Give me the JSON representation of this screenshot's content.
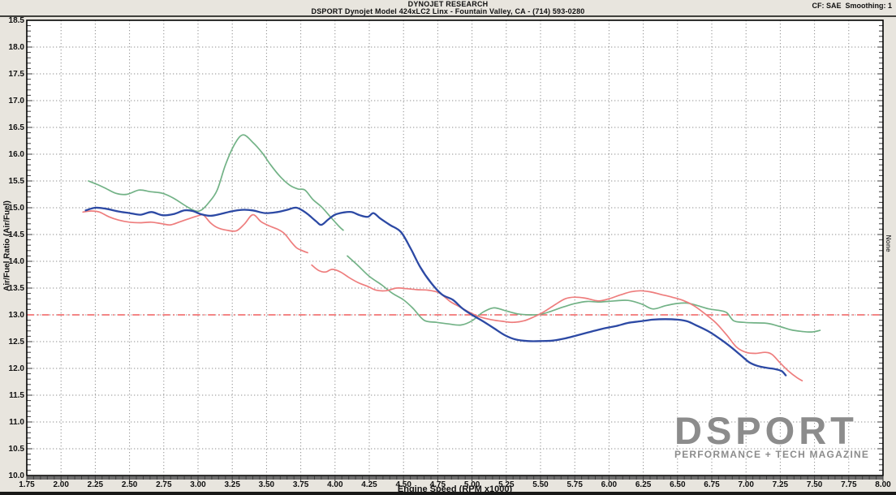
{
  "header": {
    "right_info": "CF: SAE  Smoothing: 1"
  },
  "right_label": "None",
  "watermark": {
    "name": "DSPORT",
    "tagline": "PERFORMANCE + TECH MAGAZINE"
  },
  "chart_data": {
    "type": "line",
    "title": "DYNOJET RESEARCH",
    "subtitle": "DSPORT Dynojet Model 424xLC2 Linx - Fountain Valley, CA - (714) 593-0280",
    "xlabel": "Engine Speed (RPM x1000)",
    "ylabel": "Air/Fuel Ratio (Air/Fuel)",
    "xlim": [
      1.75,
      8.0
    ],
    "ylim": [
      10.0,
      18.5
    ],
    "x_tick_step": 0.25,
    "y_tick_step": 0.5,
    "x_minor_step": 0.05,
    "y_minor_step": 0.1,
    "grid": "dotted",
    "legend_position": "none",
    "grid_color": "#8f8f8f",
    "reference_line": {
      "y": 13.0,
      "color": "#f05f5f",
      "style": "dash-dot"
    },
    "series": [
      {
        "name": "green-afr-run",
        "color": "#72b286",
        "width": 1.7,
        "segments": [
          [
            [
              2.2,
              15.5
            ],
            [
              2.26,
              15.44
            ],
            [
              2.32,
              15.37
            ],
            [
              2.4,
              15.27
            ],
            [
              2.48,
              15.25
            ],
            [
              2.57,
              15.33
            ],
            [
              2.65,
              15.3
            ],
            [
              2.74,
              15.27
            ],
            [
              2.82,
              15.18
            ],
            [
              2.9,
              15.05
            ],
            [
              2.97,
              14.95
            ],
            [
              3.02,
              14.95
            ],
            [
              3.08,
              15.1
            ],
            [
              3.14,
              15.33
            ],
            [
              3.2,
              15.8
            ],
            [
              3.27,
              16.2
            ],
            [
              3.33,
              16.36
            ],
            [
              3.4,
              16.22
            ],
            [
              3.47,
              16.02
            ],
            [
              3.53,
              15.8
            ],
            [
              3.6,
              15.58
            ],
            [
              3.67,
              15.42
            ],
            [
              3.73,
              15.35
            ],
            [
              3.78,
              15.33
            ],
            [
              3.84,
              15.15
            ],
            [
              3.9,
              15.02
            ],
            [
              3.97,
              14.82
            ],
            [
              4.03,
              14.65
            ],
            [
              4.06,
              14.58
            ]
          ],
          [
            [
              4.09,
              14.1
            ],
            [
              4.16,
              13.94
            ],
            [
              4.25,
              13.72
            ],
            [
              4.34,
              13.56
            ],
            [
              4.42,
              13.4
            ],
            [
              4.5,
              13.28
            ],
            [
              4.57,
              13.12
            ],
            [
              4.65,
              12.9
            ],
            [
              4.74,
              12.86
            ],
            [
              4.83,
              12.83
            ],
            [
              4.92,
              12.81
            ],
            [
              5.0,
              12.89
            ],
            [
              5.08,
              13.05
            ],
            [
              5.16,
              13.13
            ],
            [
              5.24,
              13.08
            ],
            [
              5.33,
              13.02
            ],
            [
              5.42,
              13.0
            ],
            [
              5.5,
              13.01
            ],
            [
              5.58,
              13.07
            ],
            [
              5.67,
              13.15
            ],
            [
              5.75,
              13.21
            ],
            [
              5.84,
              13.25
            ],
            [
              5.93,
              13.24
            ],
            [
              6.04,
              13.26
            ],
            [
              6.14,
              13.27
            ],
            [
              6.24,
              13.2
            ],
            [
              6.32,
              13.11
            ],
            [
              6.41,
              13.17
            ],
            [
              6.49,
              13.21
            ],
            [
              6.57,
              13.22
            ],
            [
              6.65,
              13.17
            ],
            [
              6.73,
              13.11
            ],
            [
              6.81,
              13.08
            ],
            [
              6.86,
              13.04
            ],
            [
              6.91,
              12.89
            ],
            [
              6.98,
              12.86
            ],
            [
              7.07,
              12.85
            ],
            [
              7.16,
              12.84
            ],
            [
              7.25,
              12.78
            ],
            [
              7.33,
              12.72
            ],
            [
              7.41,
              12.69
            ],
            [
              7.48,
              12.68
            ],
            [
              7.54,
              12.71
            ]
          ]
        ]
      },
      {
        "name": "red-afr-run",
        "color": "#ee7d7d",
        "width": 1.7,
        "segments": [
          [
            [
              2.16,
              14.92
            ],
            [
              2.22,
              14.94
            ],
            [
              2.28,
              14.92
            ],
            [
              2.35,
              14.83
            ],
            [
              2.42,
              14.77
            ],
            [
              2.5,
              14.73
            ],
            [
              2.58,
              14.72
            ],
            [
              2.66,
              14.73
            ],
            [
              2.74,
              14.7
            ],
            [
              2.8,
              14.68
            ],
            [
              2.87,
              14.74
            ],
            [
              2.94,
              14.8
            ],
            [
              3.0,
              14.85
            ],
            [
              3.04,
              14.86
            ],
            [
              3.09,
              14.72
            ],
            [
              3.14,
              14.63
            ],
            [
              3.21,
              14.58
            ],
            [
              3.28,
              14.57
            ],
            [
              3.34,
              14.7
            ],
            [
              3.4,
              14.87
            ],
            [
              3.46,
              14.74
            ],
            [
              3.52,
              14.66
            ],
            [
              3.58,
              14.6
            ],
            [
              3.63,
              14.52
            ],
            [
              3.68,
              14.36
            ],
            [
              3.72,
              14.25
            ],
            [
              3.76,
              14.2
            ],
            [
              3.8,
              14.16
            ]
          ],
          [
            [
              3.83,
              13.93
            ],
            [
              3.88,
              13.83
            ],
            [
              3.93,
              13.8
            ],
            [
              3.98,
              13.85
            ],
            [
              4.04,
              13.8
            ],
            [
              4.1,
              13.7
            ],
            [
              4.17,
              13.6
            ],
            [
              4.24,
              13.53
            ],
            [
              4.3,
              13.46
            ],
            [
              4.37,
              13.45
            ],
            [
              4.45,
              13.5
            ],
            [
              4.52,
              13.49
            ],
            [
              4.6,
              13.47
            ],
            [
              4.68,
              13.46
            ],
            [
              4.76,
              13.41
            ],
            [
              4.84,
              13.25
            ],
            [
              4.91,
              13.15
            ],
            [
              4.98,
              13.05
            ],
            [
              5.06,
              12.96
            ],
            [
              5.14,
              12.91
            ],
            [
              5.22,
              12.88
            ],
            [
              5.3,
              12.86
            ],
            [
              5.38,
              12.89
            ],
            [
              5.45,
              12.96
            ],
            [
              5.52,
              13.05
            ],
            [
              5.6,
              13.18
            ],
            [
              5.68,
              13.3
            ],
            [
              5.75,
              13.33
            ],
            [
              5.83,
              13.31
            ],
            [
              5.92,
              13.26
            ],
            [
              6.0,
              13.3
            ],
            [
              6.08,
              13.37
            ],
            [
              6.16,
              13.43
            ],
            [
              6.23,
              13.45
            ],
            [
              6.3,
              13.43
            ],
            [
              6.38,
              13.38
            ],
            [
              6.46,
              13.33
            ],
            [
              6.54,
              13.27
            ],
            [
              6.62,
              13.17
            ],
            [
              6.7,
              13.02
            ],
            [
              6.78,
              12.85
            ],
            [
              6.86,
              12.62
            ],
            [
              6.93,
              12.4
            ],
            [
              7.0,
              12.3
            ],
            [
              7.07,
              12.28
            ],
            [
              7.14,
              12.3
            ],
            [
              7.19,
              12.26
            ],
            [
              7.25,
              12.1
            ],
            [
              7.31,
              11.95
            ],
            [
              7.37,
              11.83
            ],
            [
              7.41,
              11.77
            ]
          ]
        ]
      },
      {
        "name": "blue-afr-run",
        "color": "#2c49a4",
        "width": 2.3,
        "segments": [
          [
            [
              2.18,
              14.95
            ],
            [
              2.25,
              15.0
            ],
            [
              2.33,
              14.98
            ],
            [
              2.42,
              14.93
            ],
            [
              2.5,
              14.9
            ],
            [
              2.58,
              14.87
            ],
            [
              2.66,
              14.92
            ],
            [
              2.74,
              14.86
            ],
            [
              2.82,
              14.88
            ],
            [
              2.9,
              14.95
            ],
            [
              2.96,
              14.94
            ],
            [
              3.02,
              14.88
            ],
            [
              3.09,
              14.85
            ],
            [
              3.16,
              14.88
            ],
            [
              3.24,
              14.93
            ],
            [
              3.32,
              14.96
            ],
            [
              3.4,
              14.95
            ],
            [
              3.49,
              14.9
            ],
            [
              3.58,
              14.92
            ],
            [
              3.65,
              14.96
            ],
            [
              3.72,
              15.0
            ],
            [
              3.79,
              14.9
            ],
            [
              3.86,
              14.75
            ],
            [
              3.9,
              14.68
            ],
            [
              3.95,
              14.78
            ],
            [
              4.0,
              14.87
            ],
            [
              4.06,
              14.91
            ],
            [
              4.12,
              14.92
            ],
            [
              4.18,
              14.86
            ],
            [
              4.24,
              14.83
            ],
            [
              4.28,
              14.9
            ],
            [
              4.33,
              14.8
            ],
            [
              4.4,
              14.68
            ],
            [
              4.48,
              14.55
            ],
            [
              4.55,
              14.25
            ],
            [
              4.62,
              13.9
            ],
            [
              4.7,
              13.6
            ],
            [
              4.78,
              13.38
            ],
            [
              4.86,
              13.28
            ],
            [
              4.93,
              13.12
            ],
            [
              5.0,
              13.0
            ],
            [
              5.08,
              12.88
            ],
            [
              5.16,
              12.75
            ],
            [
              5.24,
              12.62
            ],
            [
              5.32,
              12.54
            ],
            [
              5.41,
              12.51
            ],
            [
              5.5,
              12.51
            ],
            [
              5.59,
              12.52
            ],
            [
              5.68,
              12.56
            ],
            [
              5.77,
              12.62
            ],
            [
              5.86,
              12.68
            ],
            [
              5.95,
              12.74
            ],
            [
              6.05,
              12.79
            ],
            [
              6.14,
              12.85
            ],
            [
              6.23,
              12.88
            ],
            [
              6.32,
              12.91
            ],
            [
              6.41,
              12.92
            ],
            [
              6.5,
              12.91
            ],
            [
              6.57,
              12.88
            ],
            [
              6.64,
              12.8
            ],
            [
              6.72,
              12.7
            ],
            [
              6.8,
              12.57
            ],
            [
              6.88,
              12.42
            ],
            [
              6.96,
              12.25
            ],
            [
              7.02,
              12.12
            ],
            [
              7.08,
              12.05
            ],
            [
              7.15,
              12.01
            ],
            [
              7.21,
              11.99
            ],
            [
              7.26,
              11.95
            ],
            [
              7.29,
              11.87
            ]
          ]
        ]
      }
    ]
  }
}
